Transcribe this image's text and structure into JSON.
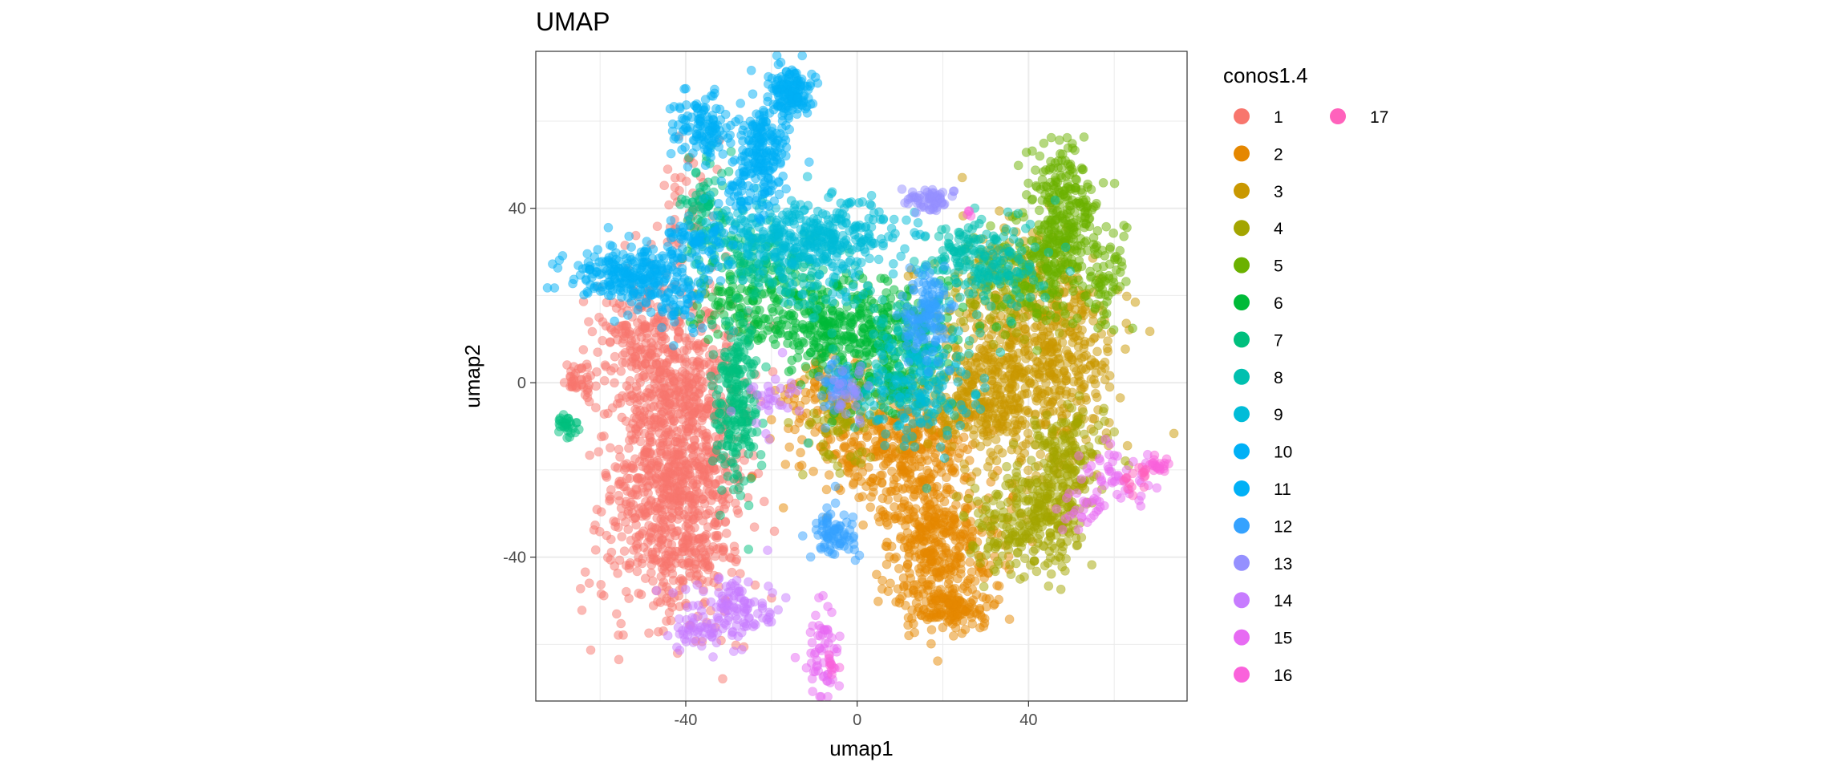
{
  "chart_data": {
    "type": "scatter",
    "title": "UMAP",
    "xlabel": "umap1",
    "ylabel": "umap2",
    "xlim": [
      -75,
      77
    ],
    "ylim": [
      -73,
      76
    ],
    "xticks": [
      -40,
      0,
      40
    ],
    "yticks": [
      -40,
      0,
      40
    ],
    "grid": true,
    "legend_title": "conos1.4",
    "legend_position": "right",
    "point_opacity": 0.5,
    "series": [
      {
        "name": "1",
        "color": "#F8766D",
        "clusters": [
          [
            -43,
            -5,
            8,
            14,
            700
          ],
          [
            -45,
            -33,
            8,
            12,
            380
          ],
          [
            -65,
            0,
            2,
            2,
            40
          ],
          [
            -37,
            -28,
            5,
            15,
            200
          ],
          [
            -52,
            10,
            4,
            5,
            80
          ],
          [
            -40,
            42,
            4,
            6,
            40
          ]
        ]
      },
      {
        "name": "2",
        "color": "#E58700",
        "clusters": [
          [
            19,
            -38,
            7,
            9,
            450
          ],
          [
            10,
            -15,
            10,
            7,
            400
          ],
          [
            22,
            -52,
            4,
            2,
            100
          ],
          [
            -8,
            -3,
            6,
            5,
            80
          ]
        ]
      },
      {
        "name": "3",
        "color": "#C99800",
        "clusters": [
          [
            40,
            5,
            10,
            13,
            650
          ],
          [
            28,
            -5,
            6,
            6,
            150
          ],
          [
            50,
            10,
            4,
            8,
            80
          ]
        ]
      },
      {
        "name": "4",
        "color": "#A3A500",
        "clusters": [
          [
            44,
            -30,
            5,
            7,
            220
          ],
          [
            50,
            -15,
            5,
            6,
            130
          ],
          [
            34,
            -34,
            5,
            5,
            90
          ],
          [
            -5,
            -10,
            4,
            4,
            60
          ],
          [
            33,
            20,
            8,
            6,
            80
          ]
        ]
      },
      {
        "name": "5",
        "color": "#6BB100",
        "clusters": [
          [
            48,
            38,
            4,
            8,
            280
          ],
          [
            42,
            25,
            6,
            6,
            140
          ],
          [
            58,
            23,
            3,
            6,
            60
          ]
        ]
      },
      {
        "name": "6",
        "color": "#00BA38",
        "clusters": [
          [
            2,
            12,
            9,
            6,
            320
          ],
          [
            -25,
            18,
            6,
            5,
            130
          ],
          [
            -10,
            15,
            5,
            5,
            100
          ],
          [
            5,
            0,
            6,
            4,
            70
          ]
        ]
      },
      {
        "name": "7",
        "color": "#00BF7D",
        "clusters": [
          [
            -28,
            -5,
            2.5,
            10,
            220
          ],
          [
            -35,
            38,
            3,
            7,
            90
          ],
          [
            -68,
            -10,
            1.5,
            1.2,
            30
          ],
          [
            -23,
            28,
            5,
            4,
            80
          ]
        ]
      },
      {
        "name": "8",
        "color": "#00C0AF",
        "clusters": [
          [
            30,
            28,
            7,
            5,
            200
          ],
          [
            12,
            5,
            8,
            8,
            120
          ],
          [
            -15,
            25,
            6,
            5,
            80
          ]
        ]
      },
      {
        "name": "9",
        "color": "#00BCD8",
        "clusters": [
          [
            -8,
            33,
            9,
            5,
            320
          ],
          [
            14,
            0,
            6,
            8,
            150
          ],
          [
            -25,
            35,
            5,
            4,
            60
          ]
        ]
      },
      {
        "name": "10",
        "color": "#00B0F6",
        "clusters": [
          [
            -55,
            25,
            6,
            3,
            180
          ],
          [
            -44,
            22,
            5,
            5,
            120
          ],
          [
            -38,
            32,
            5,
            3,
            70
          ]
        ]
      },
      {
        "name": "11",
        "color": "#00B0F6",
        "clusters": [
          [
            -15,
            67,
            2.5,
            3,
            150
          ],
          [
            -22,
            55,
            3,
            5,
            150
          ],
          [
            -36,
            58,
            4,
            4,
            120
          ],
          [
            -25,
            45,
            3,
            4,
            70
          ]
        ]
      },
      {
        "name": "12",
        "color": "#35A2FF",
        "clusters": [
          [
            16,
            15,
            3,
            5,
            120
          ],
          [
            -5,
            -34,
            2.5,
            3,
            80
          ],
          [
            -5,
            0,
            2,
            3,
            40
          ]
        ]
      },
      {
        "name": "13",
        "color": "#9590FF",
        "clusters": [
          [
            17,
            42,
            3,
            1.5,
            60
          ],
          [
            -2,
            -3,
            3,
            3,
            30
          ]
        ]
      },
      {
        "name": "14",
        "color": "#C77CFF",
        "clusters": [
          [
            -28,
            -52,
            5,
            4,
            110
          ],
          [
            -38,
            -57,
            3,
            2,
            40
          ],
          [
            -20,
            -4,
            3,
            4,
            30
          ]
        ]
      },
      {
        "name": "15",
        "color": "#E76BF3",
        "clusters": [
          [
            -8,
            -61,
            1.8,
            5,
            60
          ],
          [
            60,
            -22,
            5,
            3,
            50
          ],
          [
            54,
            -29,
            3,
            2,
            25
          ]
        ]
      },
      {
        "name": "16",
        "color": "#FA62DB",
        "clusters": [
          [
            70,
            -19,
            1.5,
            1,
            25
          ],
          [
            26,
            39,
            0.5,
            0.5,
            4
          ],
          [
            -6,
            -65,
            1,
            1.2,
            10
          ]
        ]
      },
      {
        "name": "17",
        "color": "#FF62BC",
        "clusters": [
          [
            64,
            -22,
            2,
            1.5,
            15
          ]
        ]
      }
    ]
  }
}
